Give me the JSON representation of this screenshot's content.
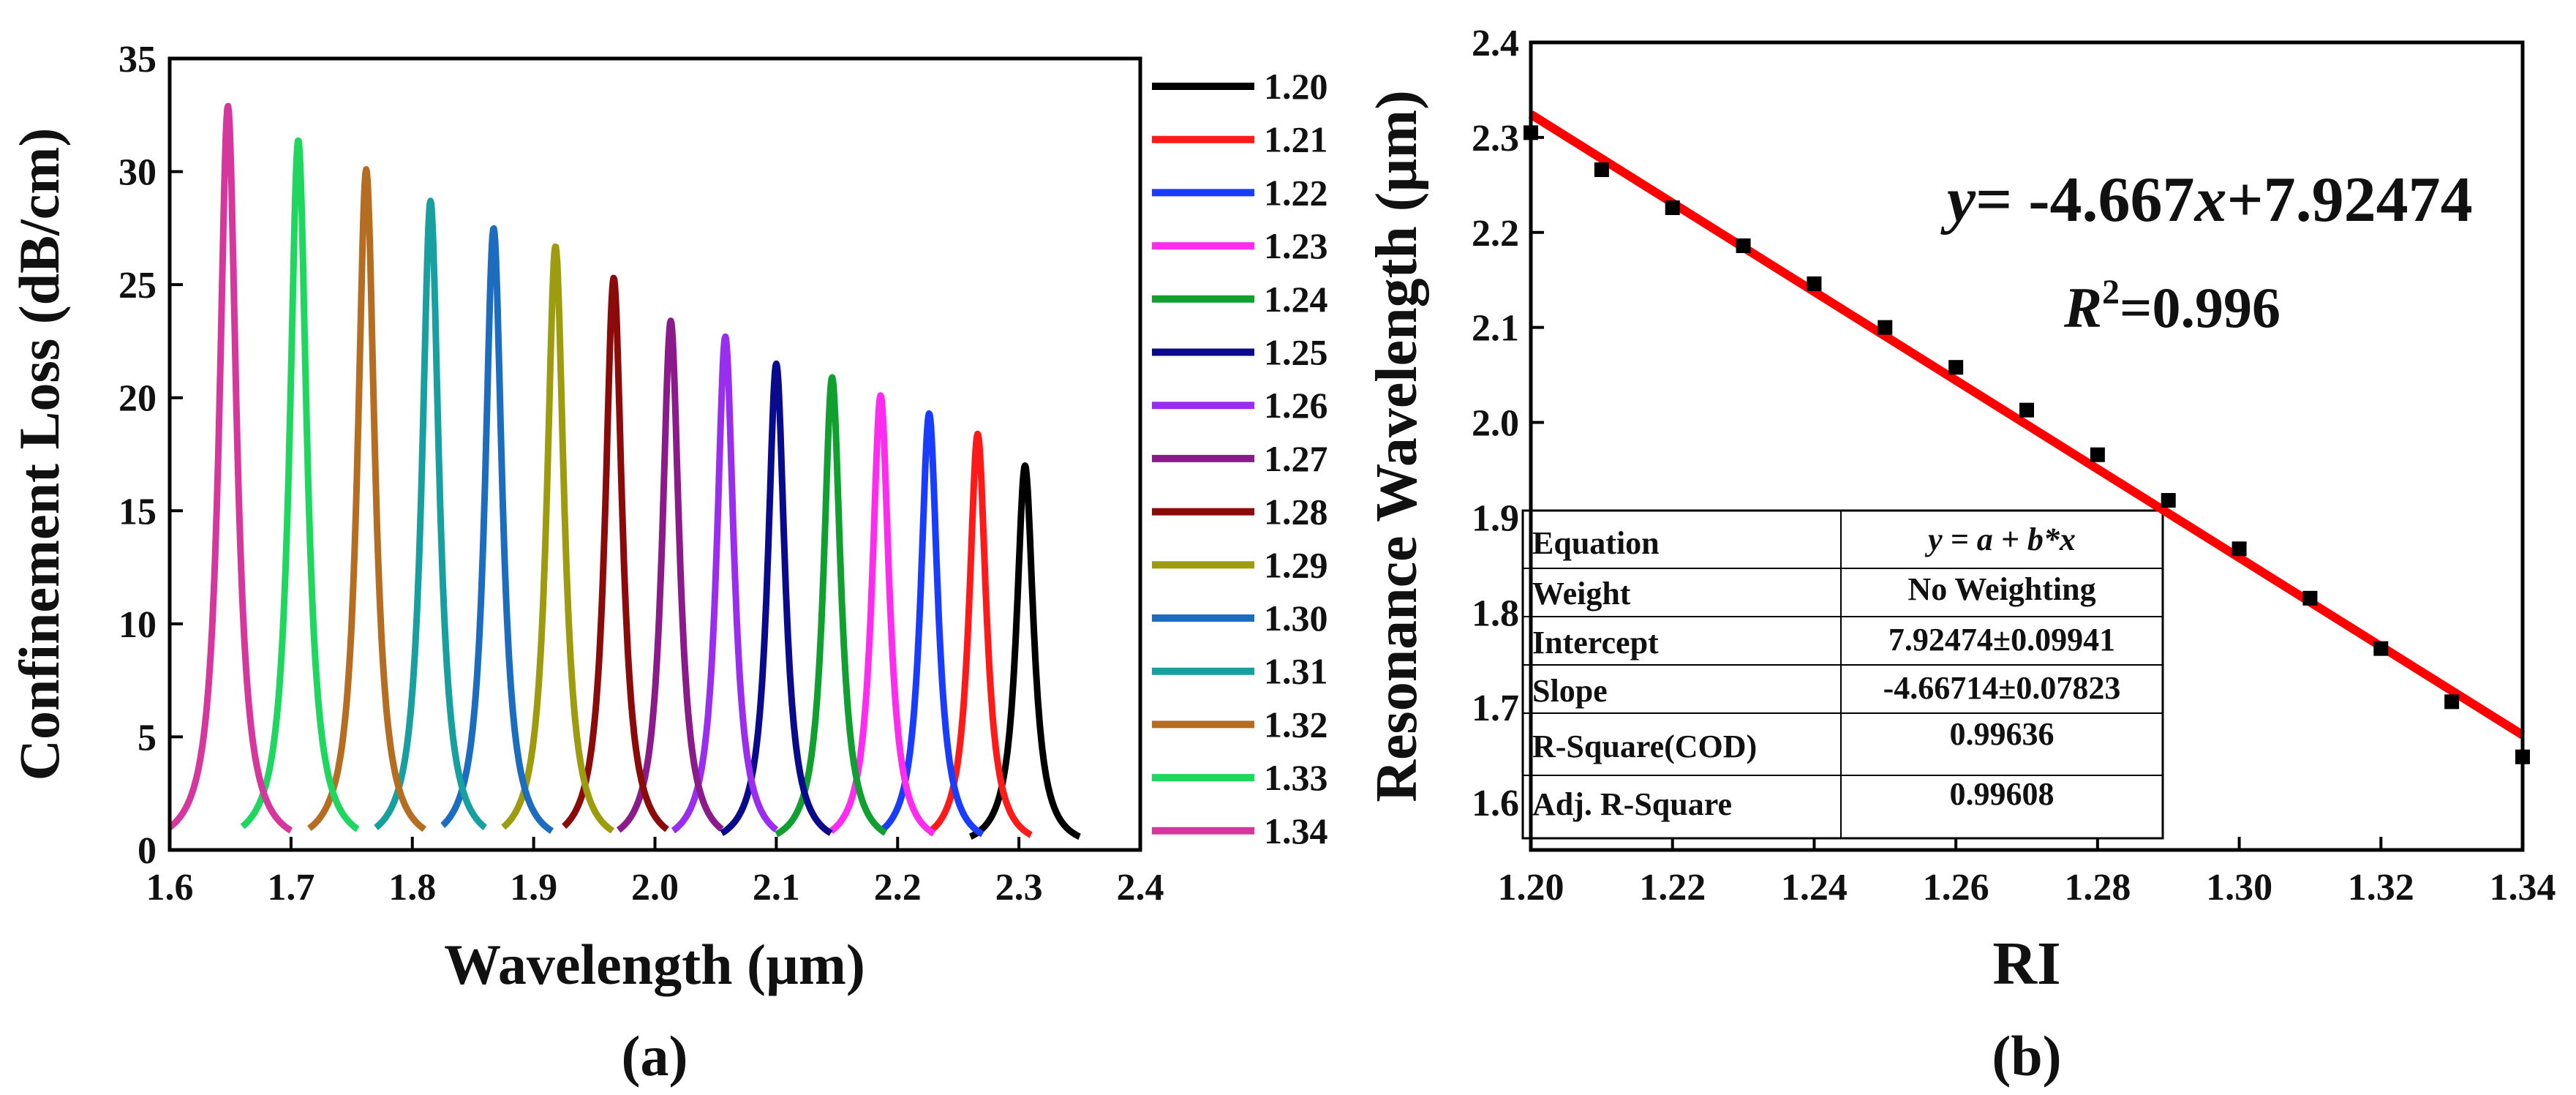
{
  "chart_data": [
    {
      "panel_label": "(a)",
      "type": "line",
      "xlabel": "Wavelength (µm)",
      "ylabel": "Confinement Loss (dB/cm)",
      "xlim": [
        1.6,
        2.4
      ],
      "ylim": [
        0,
        35
      ],
      "xticks": [
        "1.6",
        "1.7",
        "1.8",
        "1.9",
        "2.0",
        "2.1",
        "2.2",
        "2.3",
        "2.4"
      ],
      "yticks": [
        "0",
        "5",
        "10",
        "15",
        "20",
        "25",
        "30",
        "35"
      ],
      "legend_position": "right",
      "series": [
        {
          "name": "1.20",
          "color": "#000000",
          "peak_x": 2.305,
          "peak_y": 17.0,
          "x_range": [
            2.26,
            2.35
          ]
        },
        {
          "name": "1.21",
          "color": "#ff1a1a",
          "peak_x": 2.266,
          "peak_y": 18.4,
          "x_range": [
            2.225,
            2.31
          ]
        },
        {
          "name": "1.22",
          "color": "#1a3cff",
          "peak_x": 2.226,
          "peak_y": 19.3,
          "x_range": [
            2.185,
            2.27
          ]
        },
        {
          "name": "1.23",
          "color": "#ff2cf0",
          "peak_x": 2.186,
          "peak_y": 20.1,
          "x_range": [
            2.145,
            2.23
          ]
        },
        {
          "name": "1.24",
          "color": "#11a030",
          "peak_x": 2.146,
          "peak_y": 20.9,
          "x_range": [
            2.1,
            2.19
          ]
        },
        {
          "name": "1.25",
          "color": "#0a0a8c",
          "peak_x": 2.1,
          "peak_y": 21.5,
          "x_range": [
            2.055,
            2.145
          ]
        },
        {
          "name": "1.26",
          "color": "#9a2ef0",
          "peak_x": 2.058,
          "peak_y": 22.7,
          "x_range": [
            2.015,
            2.1
          ]
        },
        {
          "name": "1.27",
          "color": "#8b1a8b",
          "peak_x": 2.013,
          "peak_y": 23.4,
          "x_range": [
            1.97,
            2.055
          ]
        },
        {
          "name": "1.28",
          "color": "#8b0a0a",
          "peak_x": 1.966,
          "peak_y": 25.3,
          "x_range": [
            1.925,
            2.01
          ]
        },
        {
          "name": "1.29",
          "color": "#9c9c0e",
          "peak_x": 1.918,
          "peak_y": 26.7,
          "x_range": [
            1.875,
            1.965
          ]
        },
        {
          "name": "1.30",
          "color": "#1c6cc0",
          "peak_x": 1.867,
          "peak_y": 27.5,
          "x_range": [
            1.825,
            1.915
          ]
        },
        {
          "name": "1.31",
          "color": "#18a0a0",
          "peak_x": 1.815,
          "peak_y": 28.7,
          "x_range": [
            1.77,
            1.86
          ]
        },
        {
          "name": "1.32",
          "color": "#b56d22",
          "peak_x": 1.762,
          "peak_y": 30.1,
          "x_range": [
            1.715,
            1.81
          ]
        },
        {
          "name": "1.33",
          "color": "#1fd65e",
          "peak_x": 1.706,
          "peak_y": 31.4,
          "x_range": [
            1.66,
            1.755
          ]
        },
        {
          "name": "1.34",
          "color": "#d6379c",
          "peak_x": 1.648,
          "peak_y": 32.9,
          "x_range": [
            1.6,
            1.7
          ]
        }
      ]
    },
    {
      "panel_label": "(b)",
      "type": "scatter",
      "xlabel": "RI",
      "ylabel": "Resonance Wavelength (µm)",
      "xlim": [
        1.2,
        1.34
      ],
      "ylim": [
        1.55,
        2.4
      ],
      "xticks": [
        "1.20",
        "1.22",
        "1.24",
        "1.26",
        "1.28",
        "1.30",
        "1.32",
        "1.34"
      ],
      "yticks": [
        "1.6",
        "1.7",
        "1.8",
        "1.9",
        "2.0",
        "2.1",
        "2.2",
        "2.3",
        "2.4"
      ],
      "x": [
        1.2,
        1.21,
        1.22,
        1.23,
        1.24,
        1.25,
        1.26,
        1.27,
        1.28,
        1.29,
        1.3,
        1.31,
        1.32,
        1.33,
        1.34
      ],
      "y": [
        2.305,
        2.266,
        2.226,
        2.186,
        2.146,
        2.1,
        2.058,
        2.013,
        1.966,
        1.918,
        1.867,
        1.815,
        1.762,
        1.706,
        1.648
      ],
      "fit": {
        "slope": -4.667,
        "intercept": 7.92474,
        "color": "#ff0000"
      },
      "equation_text": {
        "y": "y",
        "eq": "= -4.667",
        "x": "x",
        "rest": "+7.92474"
      },
      "r2_text": {
        "R": "R",
        "sup": "2",
        "val": "=0.996"
      },
      "fit_table": [
        [
          "Equation",
          "y = a + b*x"
        ],
        [
          "Weight",
          "No Weighting"
        ],
        [
          "Intercept",
          "7.92474±0.09941"
        ],
        [
          "Slope",
          "-4.66714±0.07823"
        ],
        [
          "R-Square(COD)",
          "0.99636"
        ],
        [
          "Adj. R-Square",
          "0.99608"
        ]
      ]
    }
  ]
}
